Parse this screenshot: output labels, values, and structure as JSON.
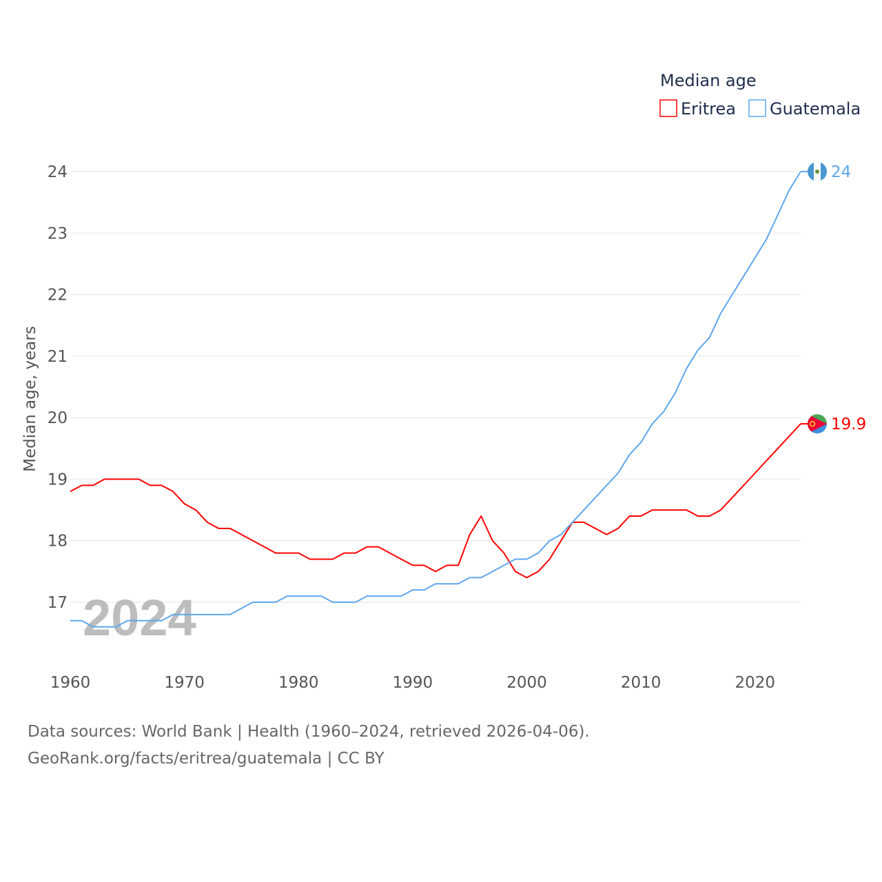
{
  "chart_data": {
    "type": "line",
    "title": "Median age",
    "ylabel": "Median age, years",
    "xlabel": "",
    "xlim": [
      1960,
      2024
    ],
    "ylim": [
      16.0,
      24.0
    ],
    "x_ticks": [
      "1960",
      "1970",
      "1980",
      "1990",
      "2000",
      "2010",
      "2020"
    ],
    "y_ticks": [
      "17",
      "18",
      "19",
      "20",
      "21",
      "22",
      "23",
      "24"
    ],
    "grid": true,
    "legend_position": "top-right",
    "year_watermark": "2024",
    "x": [
      1960,
      1961,
      1962,
      1963,
      1964,
      1965,
      1966,
      1967,
      1968,
      1969,
      1970,
      1971,
      1972,
      1973,
      1974,
      1975,
      1976,
      1977,
      1978,
      1979,
      1980,
      1981,
      1982,
      1983,
      1984,
      1985,
      1986,
      1987,
      1988,
      1989,
      1990,
      1991,
      1992,
      1993,
      1994,
      1995,
      1996,
      1997,
      1998,
      1999,
      2000,
      2001,
      2002,
      2003,
      2004,
      2005,
      2006,
      2007,
      2008,
      2009,
      2010,
      2011,
      2012,
      2013,
      2014,
      2015,
      2016,
      2017,
      2018,
      2019,
      2020,
      2021,
      2022,
      2023,
      2024
    ],
    "series": [
      {
        "name": "Eritrea",
        "color": "#ff0000",
        "end_label": "19.9",
        "values": [
          18.8,
          18.9,
          18.9,
          19.0,
          19.0,
          19.0,
          19.0,
          18.9,
          18.9,
          18.8,
          18.6,
          18.5,
          18.3,
          18.2,
          18.2,
          18.1,
          18.0,
          17.9,
          17.8,
          17.8,
          17.8,
          17.7,
          17.7,
          17.7,
          17.8,
          17.8,
          17.9,
          17.9,
          17.8,
          17.7,
          17.6,
          17.6,
          17.5,
          17.6,
          17.6,
          18.1,
          18.4,
          18.0,
          17.8,
          17.5,
          17.4,
          17.5,
          17.7,
          18.0,
          18.3,
          18.3,
          18.2,
          18.1,
          18.2,
          18.4,
          18.4,
          18.5,
          18.5,
          18.5,
          18.5,
          18.4,
          18.4,
          18.5,
          18.7,
          18.9,
          19.1,
          19.3,
          19.5,
          19.7,
          19.9
        ]
      },
      {
        "name": "Guatemala",
        "color": "#5ea6ec",
        "end_label": "24",
        "values": [
          16.7,
          16.7,
          16.6,
          16.6,
          16.6,
          16.7,
          16.7,
          16.7,
          16.7,
          16.8,
          16.8,
          16.8,
          16.8,
          16.8,
          16.8,
          16.9,
          17.0,
          17.0,
          17.0,
          17.1,
          17.1,
          17.1,
          17.1,
          17.0,
          17.0,
          17.0,
          17.1,
          17.1,
          17.1,
          17.1,
          17.2,
          17.2,
          17.3,
          17.3,
          17.3,
          17.4,
          17.4,
          17.5,
          17.6,
          17.7,
          17.7,
          17.8,
          18.0,
          18.1,
          18.3,
          18.5,
          18.7,
          18.9,
          19.1,
          19.4,
          19.6,
          19.9,
          20.1,
          20.4,
          20.8,
          21.1,
          21.3,
          21.7,
          22.0,
          22.3,
          22.6,
          22.9,
          23.3,
          23.7,
          24.0
        ]
      }
    ]
  },
  "footer": {
    "line1": "Data sources: World Bank | Health (1960–2024, retrieved 2026-04-06).",
    "line2": "GeoRank.org/facts/eritrea/guatemala | CC BY"
  }
}
